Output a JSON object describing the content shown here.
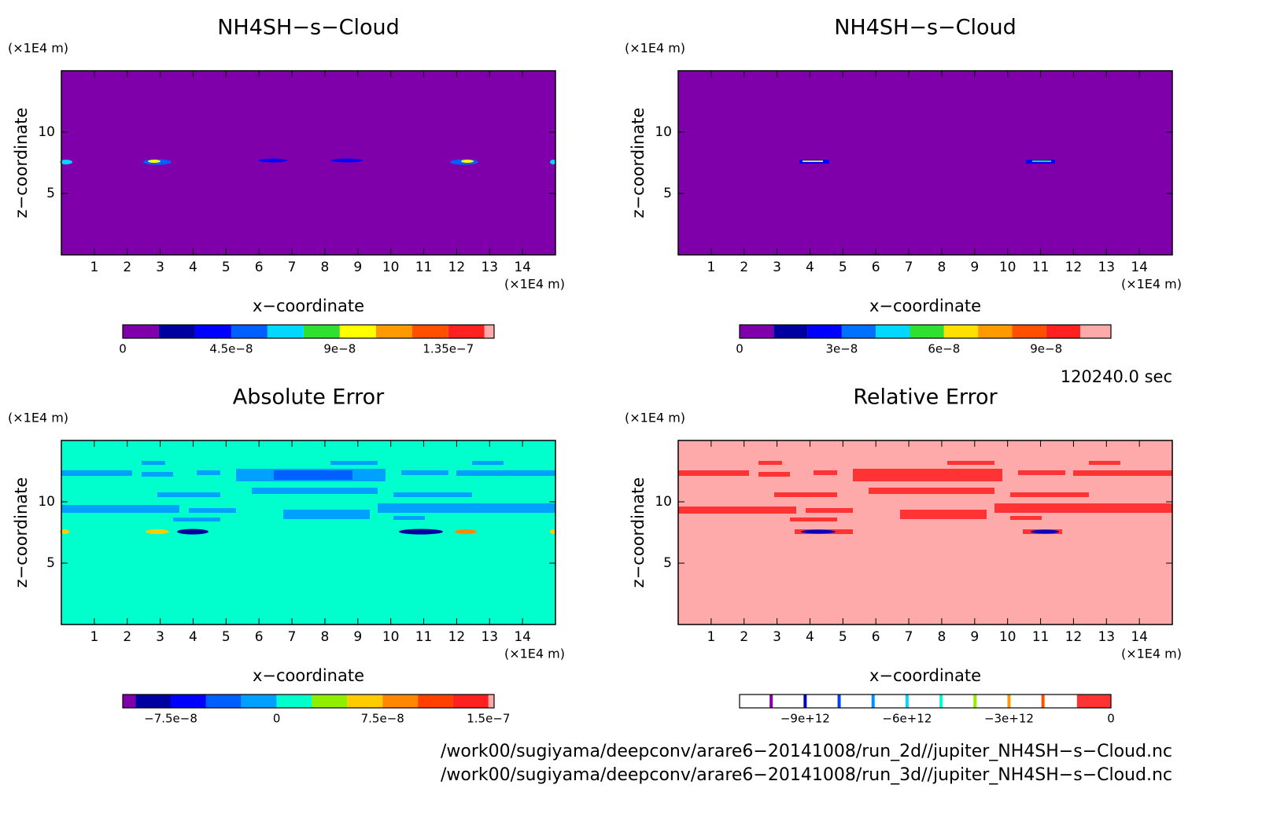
{
  "chart_data": [
    {
      "type": "contour",
      "title": "NH4SH−s−Cloud",
      "xlabel": "x−coordinate",
      "ylabel": "z−coordinate",
      "x_unit": "(×1E4 m)",
      "y_unit": "(×1E4 m)",
      "xlim": [
        0,
        15
      ],
      "ylim": [
        0,
        15
      ],
      "xticks": [
        1,
        2,
        3,
        4,
        5,
        6,
        7,
        8,
        9,
        10,
        11,
        12,
        13,
        14
      ],
      "yticks": [
        5,
        10
      ],
      "field_color": "#7f00aa",
      "colorbar": {
        "levels": [
          0,
          1.5e-08,
          3e-08,
          4.5e-08,
          6e-08,
          7.5e-08,
          9e-08,
          1.05e-07,
          1.2e-07,
          1.35e-07,
          1.5e-07,
          1.54e-07
        ],
        "colors": [
          "#7f00aa",
          "#0000a0",
          "#0000ff",
          "#0060ff",
          "#00d8ff",
          "#30e030",
          "#ffff00",
          "#ff9900",
          "#ff5000",
          "#ff2020",
          "#ffaaaa"
        ],
        "ticks": [
          0,
          {
            "value": 4.5e-08,
            "label": "4.5e−8"
          },
          {
            "value": 9e-08,
            "label": "9e−8"
          },
          {
            "value": 1.35e-07,
            "label": "1.35e−7"
          }
        ]
      }
    },
    {
      "type": "contour",
      "title": "NH4SH−s−Cloud",
      "xlabel": "x−coordinate",
      "ylabel": "z−coordinate",
      "x_unit": "(×1E4 m)",
      "y_unit": "(×1E4 m)",
      "xlim": [
        0,
        15
      ],
      "ylim": [
        0,
        15
      ],
      "xticks": [
        1,
        2,
        3,
        4,
        5,
        6,
        7,
        8,
        9,
        10,
        11,
        12,
        13,
        14
      ],
      "yticks": [
        5,
        10
      ],
      "field_color": "#7f00aa",
      "colorbar": {
        "levels": [
          0,
          1e-08,
          2e-08,
          3e-08,
          4e-08,
          5e-08,
          6e-08,
          7e-08,
          8e-08,
          9e-08,
          1e-07,
          1.09e-07
        ],
        "colors": [
          "#7f00aa",
          "#0000a0",
          "#0000ff",
          "#0070ff",
          "#00d8ff",
          "#30e030",
          "#ffe000",
          "#ff9900",
          "#ff5000",
          "#ff2020",
          "#ffaaaa"
        ],
        "ticks": [
          0,
          {
            "value": 3e-08,
            "label": "3e−8"
          },
          {
            "value": 6e-08,
            "label": "6e−8"
          },
          {
            "value": 9e-08,
            "label": "9e−8"
          }
        ]
      }
    },
    {
      "type": "contour",
      "title": "Absolute Error",
      "xlabel": "x−coordinate",
      "ylabel": "z−coordinate",
      "x_unit": "(×1E4 m)",
      "y_unit": "(×1E4 m)",
      "xlim": [
        0,
        15
      ],
      "ylim": [
        0,
        15
      ],
      "xticks": [
        1,
        2,
        3,
        4,
        5,
        6,
        7,
        8,
        9,
        10,
        11,
        12,
        13,
        14
      ],
      "yticks": [
        5,
        10
      ],
      "field_color": "#00ffcc",
      "colorbar": {
        "levels": [
          -1.09e-07,
          -1e-07,
          -7.5e-08,
          -5e-08,
          -2.5e-08,
          0,
          2.5e-08,
          5e-08,
          7.5e-08,
          1e-07,
          1.25e-07,
          1.5e-07,
          1.54e-07
        ],
        "colors": [
          "#7f00aa",
          "#0000a0",
          "#0000ff",
          "#0060ff",
          "#00a0ff",
          "#00ffcc",
          "#90ee00",
          "#ffcc00",
          "#ff8800",
          "#ff4000",
          "#ff2020",
          "#ffaaaa"
        ],
        "ticks": [
          {
            "value": -7.5e-08,
            "label": "−7.5e−8"
          },
          0,
          {
            "value": 7.5e-08,
            "label": "7.5e−8"
          },
          {
            "value": 1.5e-07,
            "label": "1.5e−7"
          }
        ]
      }
    },
    {
      "type": "contour",
      "title": "Relative Error",
      "xlabel": "x−coordinate",
      "ylabel": "z−coordinate",
      "x_unit": "(×1E4 m)",
      "y_unit": "(×1E4 m)",
      "xlim": [
        0,
        15
      ],
      "ylim": [
        0,
        15
      ],
      "xticks": [
        1,
        2,
        3,
        4,
        5,
        6,
        7,
        8,
        9,
        10,
        11,
        12,
        13,
        14
      ],
      "yticks": [
        5,
        10
      ],
      "field_color": "#ffaaaa",
      "colorbar": {
        "levels": [
          -10930000000000.0,
          -10000000000000.0,
          -9000000000000.0,
          -8000000000000.0,
          -7000000000000.0,
          -6000000000000.0,
          -5000000000000.0,
          -4000000000000.0,
          -3000000000000.0,
          -2000000000000.0,
          -1000000000000.0,
          0
        ],
        "colors": [
          "#ffffff",
          "#ffffff",
          "#ffffff",
          "#ffffff",
          "#ffffff",
          "#ffffff",
          "#ffffff",
          "#ffffff",
          "#ffffff",
          "#ffffff",
          "#ff3333"
        ],
        "line_colors": [
          "#7f00aa",
          "#0000c0",
          "#0040ff",
          "#0090ff",
          "#00d8ff",
          "#00ffcc",
          "#90ee00",
          "#ff9900",
          "#ff5000"
        ],
        "ticks": [
          {
            "value": -9000000000000.0,
            "label": "−9e+12"
          },
          {
            "value": -6000000000000.0,
            "label": "−6e+12"
          },
          {
            "value": -3000000000000.0,
            "label": "−3e+12"
          },
          0
        ]
      }
    }
  ],
  "time_label": "120240.0 sec",
  "files": [
    "/work00/sugiyama/deepconv/arare6−20141008/run_2d//jupiter_NH4SH−s−Cloud.nc",
    "/work00/sugiyama/deepconv/arare6−20141008/run_3d//jupiter_NH4SH−s−Cloud.nc"
  ]
}
